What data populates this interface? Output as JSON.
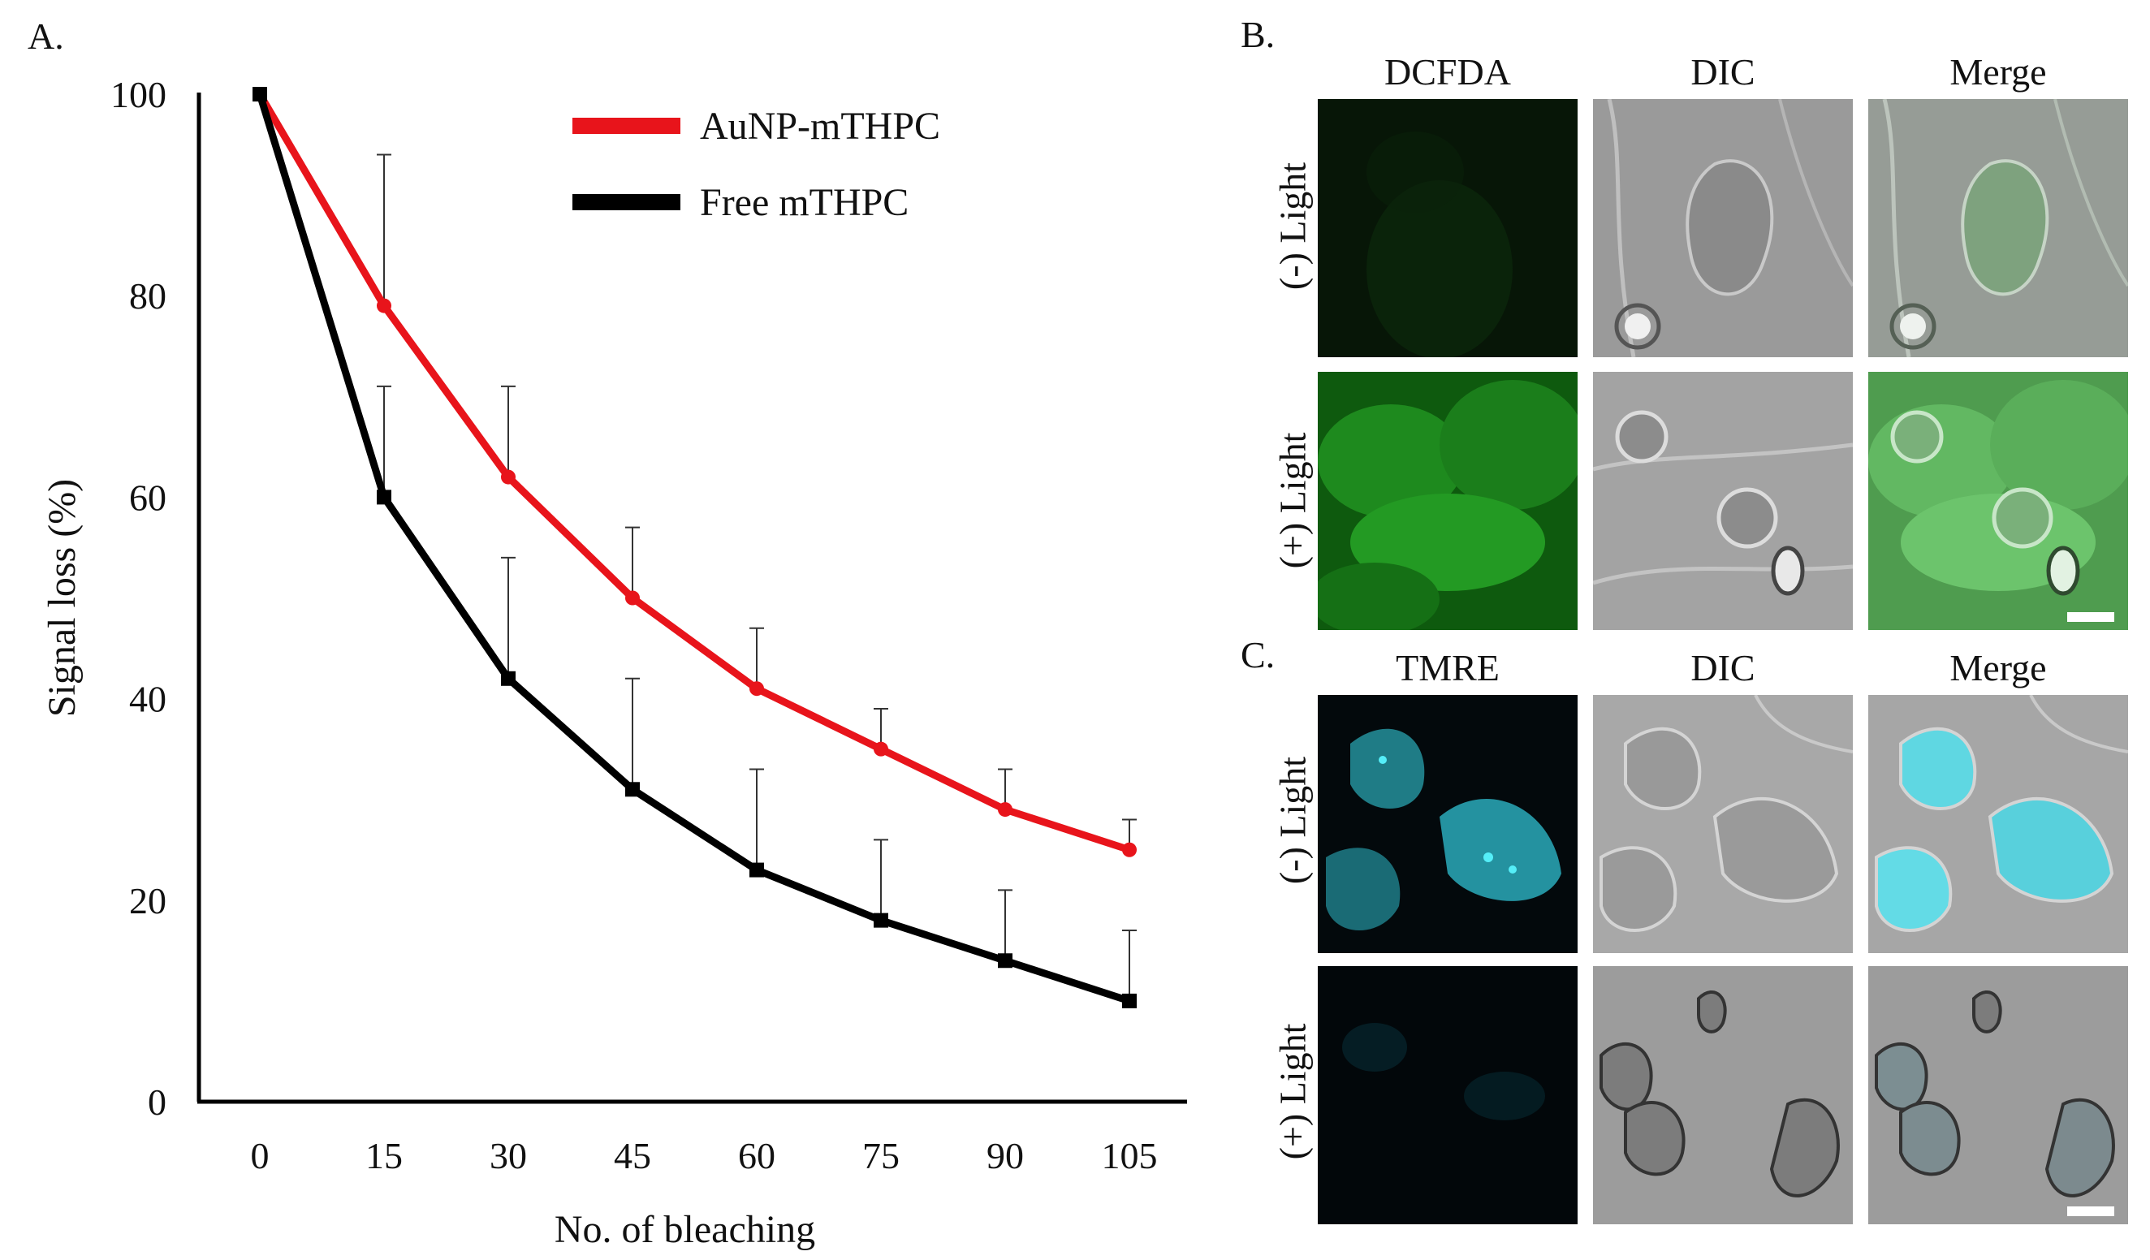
{
  "panels": {
    "a": "A.",
    "b": "B.",
    "c": "C."
  },
  "chart_data": {
    "type": "line",
    "title": "",
    "xlabel": "No. of bleaching",
    "ylabel": "Signal loss (%)",
    "x": [
      0,
      15,
      30,
      45,
      60,
      75,
      90,
      105
    ],
    "ylim": [
      0,
      100
    ],
    "yticks": [
      0,
      20,
      40,
      60,
      80,
      100
    ],
    "grid": false,
    "legend": "top-right",
    "series": [
      {
        "name": "AuNP-mTHPC",
        "color": "#e8141b",
        "values": [
          100,
          79,
          62,
          50,
          41,
          35,
          29,
          25
        ],
        "error_upper": [
          0,
          15,
          9,
          7,
          6,
          4,
          4,
          3
        ]
      },
      {
        "name": "Free mTHPC",
        "color": "#000000",
        "values": [
          100,
          60,
          42,
          31,
          23,
          18,
          14,
          10
        ],
        "error_upper": [
          0,
          11,
          12,
          11,
          10,
          8,
          7,
          7
        ]
      }
    ]
  },
  "panel_b": {
    "columns": [
      "DCFDA",
      "DIC",
      "Merge"
    ],
    "rows": [
      "(-) Light",
      "(+) Light"
    ],
    "stain_color": "#22c022"
  },
  "panel_c": {
    "columns": [
      "TMRE",
      "DIC",
      "Merge"
    ],
    "rows": [
      "(-) Light",
      "(+) Light"
    ],
    "stain_color": "#3fd8e0"
  }
}
